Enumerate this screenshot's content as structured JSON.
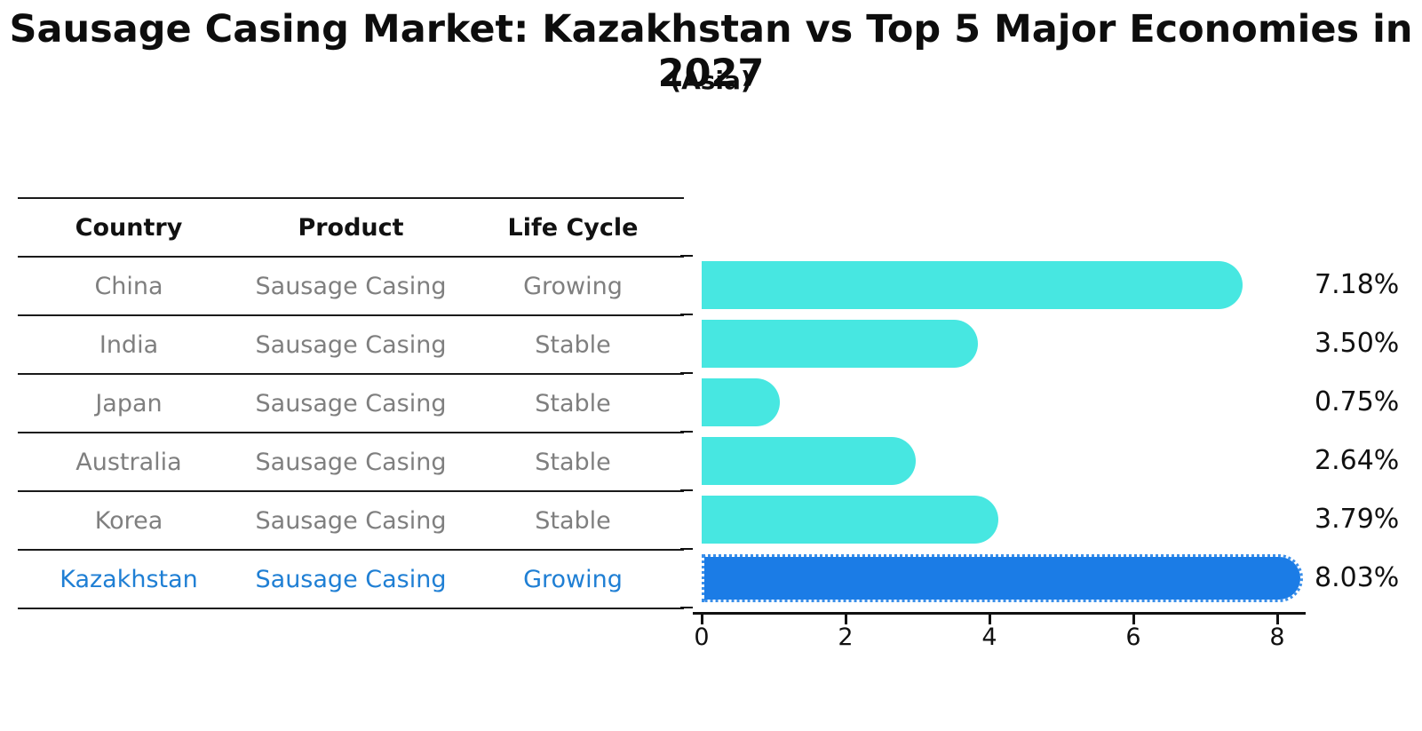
{
  "page": {
    "title": "Sausage Casing Market: Kazakhstan vs Top 5 Major Economies in 2027",
    "subtitle": "(Asia)"
  },
  "table": {
    "headers": [
      "Country",
      "Product",
      "Life Cycle"
    ],
    "rows": [
      {
        "country": "China",
        "product": "Sausage Casing",
        "life_cycle": "Growing",
        "highlighted": false
      },
      {
        "country": "India",
        "product": "Sausage Casing",
        "life_cycle": "Stable",
        "highlighted": false
      },
      {
        "country": "Japan",
        "product": "Sausage Casing",
        "life_cycle": "Stable",
        "highlighted": false
      },
      {
        "country": "Australia",
        "product": "Sausage Casing",
        "life_cycle": "Stable",
        "highlighted": false
      },
      {
        "country": "Korea",
        "product": "Sausage Casing",
        "life_cycle": "Stable",
        "highlighted": false
      },
      {
        "country": "Kazakhstan",
        "product": "Sausage Casing",
        "life_cycle": "Growing",
        "highlighted": true
      }
    ]
  },
  "chart_data": {
    "type": "bar",
    "orientation": "horizontal",
    "title": "Sausage Casing Market: Kazakhstan vs Top 5 Major Economies in 2027 (Asia)",
    "categories": [
      "China",
      "India",
      "Japan",
      "Australia",
      "Korea",
      "Kazakhstan"
    ],
    "values": [
      7.18,
      3.5,
      0.75,
      2.64,
      3.79,
      8.03
    ],
    "value_labels": [
      "7.18%",
      "3.50%",
      "0.75%",
      "2.64%",
      "3.79%",
      "8.03%"
    ],
    "x_ticks": [
      0,
      2,
      4,
      6,
      8
    ],
    "xlim": [
      0,
      8.5
    ],
    "grid": false,
    "legend": false,
    "bar_color": "#47e7e1",
    "highlight_color": "#1b7ce6",
    "highlight_index": 5,
    "highlight_style": "dotted-outline"
  },
  "colors": {
    "text_primary": "#111111",
    "text_muted": "#7f7f7f",
    "highlight_text": "#1f7fd4",
    "axis": "#111111"
  }
}
